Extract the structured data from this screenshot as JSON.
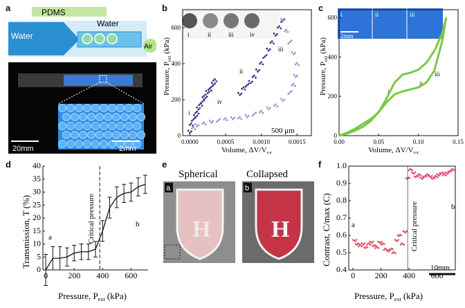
{
  "panels": {
    "a": {
      "letter": "a",
      "pdms": "PDMS",
      "water_in": "Water",
      "water_out": "Water",
      "air": "Air",
      "scale1": "20mm",
      "scale2": "2mm"
    },
    "b": {
      "letter": "b",
      "ylabel_main": "Pressure, P",
      "ylabel_sub": "ext",
      "ylabel_unit": " (kPa)",
      "xlabel_main": "Volume, ΔV/V",
      "xlabel_sub": "tot",
      "scale": "500 μm",
      "insets": [
        "i",
        "ii",
        "iii",
        "iv"
      ],
      "annot": [
        "i",
        "ii",
        "iii",
        "iv"
      ]
    },
    "c": {
      "letter": "c",
      "ylabel_main": "Pressure, P",
      "ylabel_sub": "ext",
      "ylabel_unit": " (kPa)",
      "xlabel_main": "Volume, ΔV/V",
      "xlabel_sub": "tot",
      "scale": "2mm",
      "insets": [
        "i",
        "ii",
        "iii"
      ],
      "annot": [
        "i",
        "ii",
        "iii"
      ]
    },
    "d": {
      "letter": "d",
      "ylabel": "Transmission, T (%)",
      "xlabel_main": "Pressure, P",
      "xlabel_sub": "ext",
      "xlabel_unit": " (kPa)",
      "critical": "Critical pressure",
      "a": "a",
      "b": "b"
    },
    "e": {
      "letter": "e",
      "left_title": "Spherical",
      "right_title": "Collapsed",
      "left_tag": "a",
      "right_tag": "b"
    },
    "f": {
      "letter": "f",
      "ylabel": "Contrast, C/max (C)",
      "xlabel_main": "Pressure, P",
      "xlabel_sub": "ext",
      "xlabel_unit": " (kPa)",
      "critical": "Critical pressure",
      "a": "a",
      "b": "b",
      "scale": "10mm"
    }
  },
  "chart_data": [
    {
      "type": "scatter",
      "panel": "b",
      "xlabel": "Volume, ΔV/Vtot",
      "ylabel": "Pressure, Pext (kPa)",
      "xlim": [
        -0.0001,
        0.0017
      ],
      "ylim": [
        0,
        700
      ],
      "xticks": [
        "0.0000",
        "0.0005",
        "0.0010",
        "0.0015"
      ],
      "xtick_values": [
        0,
        0.0005,
        0.001,
        0.0015
      ],
      "yticks": [
        "0",
        "200",
        "400",
        "600"
      ],
      "ytick_values": [
        0,
        200,
        400,
        600
      ],
      "series": [
        {
          "color": "#3c2f8f",
          "x": [
            0,
            2e-05,
            5e-05,
            8e-05,
            0.0001,
            0.00012,
            0.00015,
            0.00018,
            0.0002,
            0.00022,
            0.00025,
            0.00028,
            0.0003,
            0.00033,
            0.00035,
            0.0007,
            0.00075,
            0.0008,
            0.00085,
            0.0009,
            0.00095,
            0.001,
            0.00105,
            0.0011,
            0.00115,
            0.0012,
            0.00125,
            0.0013
          ],
          "y": [
            20,
            60,
            90,
            110,
            130,
            150,
            170,
            190,
            210,
            225,
            240,
            255,
            270,
            290,
            310,
            230,
            260,
            280,
            300,
            330,
            360,
            400,
            440,
            480,
            520,
            560,
            600,
            640
          ]
        },
        {
          "color": "#9a90cc",
          "x": [
            0.0013,
            0.00135,
            0.0014,
            0.00145,
            0.0015,
            0.00148,
            0.00145,
            0.0014,
            0.0013,
            0.0012,
            0.0011,
            0.001,
            0.0009,
            0.0008,
            0.0007,
            0.0006,
            0.0005,
            0.0004,
            0.0003,
            0.0002,
            0.0001,
            5e-05
          ],
          "y": [
            640,
            580,
            520,
            460,
            400,
            330,
            280,
            240,
            200,
            170,
            150,
            130,
            120,
            110,
            100,
            95,
            90,
            85,
            80,
            70,
            55,
            40
          ]
        }
      ]
    },
    {
      "type": "line",
      "panel": "c",
      "xlabel": "Volume, ΔV/Vtot",
      "ylabel": "Pressure, Pext (kPa)",
      "xlim": [
        0,
        0.15
      ],
      "ylim": [
        0,
        640
      ],
      "xticks": [
        "0.00",
        "0.05",
        "0.10",
        "0.15"
      ],
      "xtick_values": [
        0,
        0.05,
        0.1,
        0.15
      ],
      "yticks": [
        "0",
        "200",
        "400",
        "600"
      ],
      "ytick_values": [
        0,
        200,
        400,
        600
      ],
      "series": [
        {
          "color": "#7ac943",
          "x": [
            0,
            0.01,
            0.02,
            0.03,
            0.04,
            0.05,
            0.06,
            0.07,
            0.08,
            0.09,
            0.1,
            0.11,
            0.12,
            0.13,
            0.135
          ],
          "y": [
            0,
            10,
            25,
            45,
            75,
            120,
            190,
            270,
            310,
            320,
            335,
            370,
            430,
            520,
            600
          ]
        },
        {
          "color": "#7ac943",
          "x": [
            0.135,
            0.13,
            0.12,
            0.11,
            0.1,
            0.09,
            0.08,
            0.07,
            0.06,
            0.05,
            0.04,
            0.03,
            0.02,
            0.01,
            0
          ],
          "y": [
            600,
            480,
            330,
            270,
            245,
            235,
            225,
            210,
            170,
            120,
            85,
            60,
            35,
            15,
            0
          ]
        }
      ]
    },
    {
      "type": "line",
      "panel": "d",
      "xlabel": "Pressure, Pext (kPa)",
      "ylabel": "Transmission, T (%)",
      "xlim": [
        -20,
        720
      ],
      "ylim": [
        0,
        40
      ],
      "xticks": [
        "0",
        "200",
        "400",
        "600"
      ],
      "xtick_values": [
        0,
        200,
        400,
        600
      ],
      "yticks": [
        "0",
        "5",
        "10",
        "15",
        "20",
        "25",
        "30",
        "35",
        "40"
      ],
      "ytick_values": [
        0,
        5,
        10,
        15,
        20,
        25,
        30,
        35,
        40
      ],
      "series": [
        {
          "x": [
            0,
            50,
            100,
            150,
            200,
            250,
            300,
            350,
            400,
            450,
            500,
            550,
            600,
            650,
            700
          ],
          "y": [
            0,
            4.5,
            4.5,
            5,
            6.5,
            7,
            7,
            8,
            15,
            24,
            28,
            29.5,
            30,
            32,
            33
          ],
          "err": [
            6,
            4.5,
            4.5,
            3.5,
            3,
            3,
            3,
            3,
            4,
            4,
            4,
            3.5,
            3.5,
            3.5,
            3.5
          ]
        }
      ],
      "vline": 380
    },
    {
      "type": "scatter",
      "panel": "f",
      "xlabel": "Pressure, Pext (kPa)",
      "ylabel": "Contrast, C/max (C)",
      "xlim": [
        -30,
        730
      ],
      "ylim": [
        0.4,
        1.0
      ],
      "xticks": [
        "0",
        "200",
        "400",
        "600"
      ],
      "xtick_values": [
        0,
        200,
        400,
        600
      ],
      "yticks": [
        "0.4",
        "0.5",
        "0.6",
        "0.7",
        "0.8",
        "0.9",
        "1.0"
      ],
      "ytick_values": [
        0.4,
        0.5,
        0.6,
        0.7,
        0.8,
        0.9,
        1.0
      ],
      "series": [
        {
          "color": "#e0506e",
          "x": [
            0,
            20,
            40,
            60,
            80,
            100,
            120,
            140,
            160,
            180,
            200,
            220,
            240,
            260,
            280,
            300,
            320,
            340,
            360,
            380,
            400,
            420,
            440,
            460,
            480,
            500,
            520,
            540,
            560,
            580,
            600,
            620,
            640,
            660,
            680,
            700
          ],
          "y": [
            0.57,
            0.55,
            0.54,
            0.55,
            0.53,
            0.55,
            0.56,
            0.54,
            0.53,
            0.56,
            0.55,
            0.52,
            0.51,
            0.52,
            0.5,
            0.57,
            0.6,
            0.55,
            0.62,
            0.93,
            0.98,
            0.96,
            0.94,
            0.95,
            0.93,
            0.94,
            0.95,
            0.94,
            0.93,
            0.94,
            0.95,
            0.96,
            0.95,
            0.96,
            0.97,
            0.98
          ]
        }
      ]
    }
  ]
}
